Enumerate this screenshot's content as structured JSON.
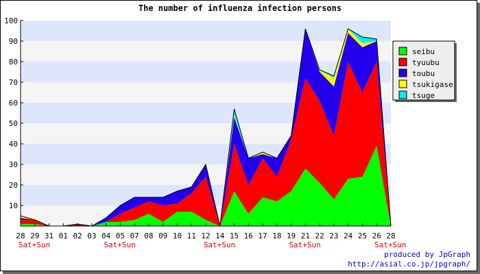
{
  "chart_data": {
    "type": "area",
    "stacked": true,
    "title": "The number of influenza infection persons",
    "x": [
      "28",
      "29",
      "31",
      "01",
      "02",
      "03",
      "04",
      "05",
      "07",
      "08",
      "09",
      "10",
      "11",
      "12",
      "14",
      "15",
      "16",
      "17",
      "18",
      "19",
      "21",
      "22",
      "23",
      "24",
      "25",
      "26",
      "28"
    ],
    "x_sub_labels": [
      {
        "index": 0,
        "text": "Sat+Sun"
      },
      {
        "index": 6,
        "text": "Sat+Sun"
      },
      {
        "index": 13,
        "text": "Sat+Sun"
      },
      {
        "index": 19,
        "text": "Sat+Sun"
      },
      {
        "index": 25,
        "text": "Sat+Sun"
      }
    ],
    "yticks": [
      10,
      20,
      30,
      40,
      50,
      60,
      70,
      80,
      90,
      100
    ],
    "ylim": [
      0,
      100
    ],
    "grid": true,
    "legend_position": "right",
    "series": [
      {
        "name": "seibu",
        "color": "#00ff00",
        "values": [
          1,
          1,
          0,
          0,
          0,
          0,
          2,
          2,
          3,
          6,
          2,
          7,
          7,
          3,
          0,
          17,
          6,
          14,
          12,
          17,
          28,
          21,
          13,
          23,
          24,
          39,
          0
        ]
      },
      {
        "name": "tyuubu",
        "color": "#ff0000",
        "values": [
          2,
          2,
          0,
          0,
          1,
          0,
          0,
          4,
          6,
          6,
          8,
          4,
          9,
          21,
          0,
          23,
          14,
          19,
          12,
          25,
          44,
          40,
          31,
          57,
          41,
          41,
          0
        ]
      },
      {
        "name": "toubu",
        "color": "#2200ee",
        "values": [
          1,
          0,
          0,
          0,
          0,
          0,
          2,
          4,
          5,
          2,
          4,
          6,
          3,
          6,
          0,
          13,
          13,
          2,
          9,
          2,
          24,
          14,
          24,
          14,
          22,
          10,
          0
        ]
      },
      {
        "name": "tsukigase",
        "color": "#ffff00",
        "values": [
          1,
          0,
          0,
          0,
          0,
          0,
          0,
          0,
          0,
          0,
          0,
          0,
          0,
          0,
          0,
          1,
          0,
          1,
          0,
          0,
          0,
          1,
          4,
          2,
          2,
          0,
          0
        ]
      },
      {
        "name": "tsuge",
        "color": "#00eeee",
        "values": [
          0,
          0,
          0,
          0,
          0,
          0,
          0,
          0,
          0,
          0,
          0,
          0,
          0,
          0,
          0,
          3,
          0,
          0,
          0,
          0,
          0,
          0,
          1,
          0,
          3,
          1,
          0
        ]
      }
    ]
  },
  "credit": {
    "line1": "produced by JpGraph",
    "line2": "http://asial.co.jp/jpgraph/"
  }
}
